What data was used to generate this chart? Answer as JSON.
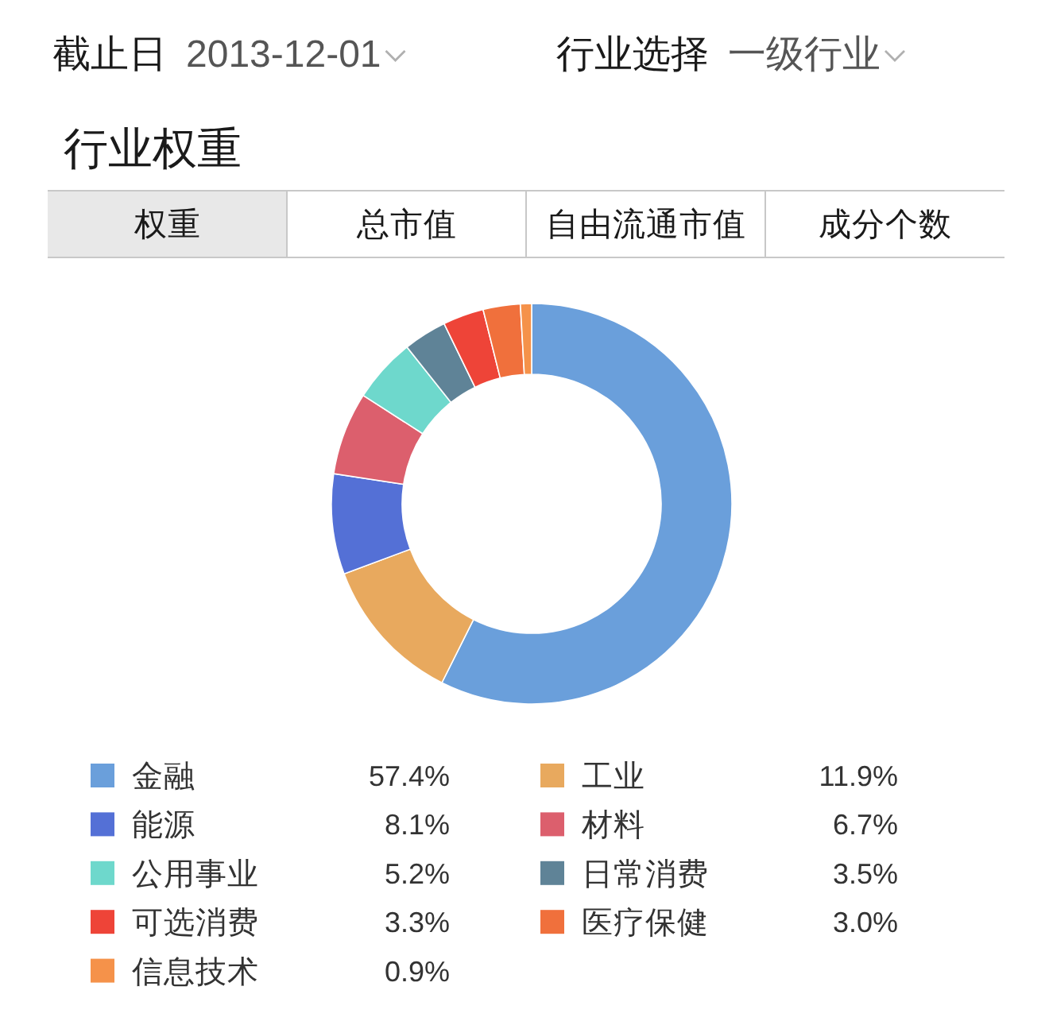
{
  "chart_data": {
    "type": "donut",
    "title": "行业权重",
    "annotations": [
      "截止日",
      "2013-12-01",
      "行业选择",
      "一级行业",
      "权重",
      "总市值",
      "自由流通市值",
      "成分个数"
    ],
    "categories": [
      "金融",
      "工业",
      "能源",
      "材料",
      "公用事业",
      "日常消费",
      "可选消费",
      "医疗保健",
      "信息技术"
    ],
    "values": [
      57.4,
      11.9,
      8.1,
      6.7,
      5.2,
      3.5,
      3.3,
      3.0,
      0.9
    ],
    "colors": [
      "#6a9fdb",
      "#e8a95e",
      "#5470d6",
      "#dc5f6d",
      "#6ed8cc",
      "#5f8397",
      "#ee4438",
      "#f0703c",
      "#f5924a"
    ],
    "value_labels": [
      "57.4%",
      "11.9%",
      "8.1%",
      "6.7%",
      "5.2%",
      "3.5%",
      "3.3%",
      "3.0%",
      "0.9%"
    ],
    "legend": "bottom"
  }
}
